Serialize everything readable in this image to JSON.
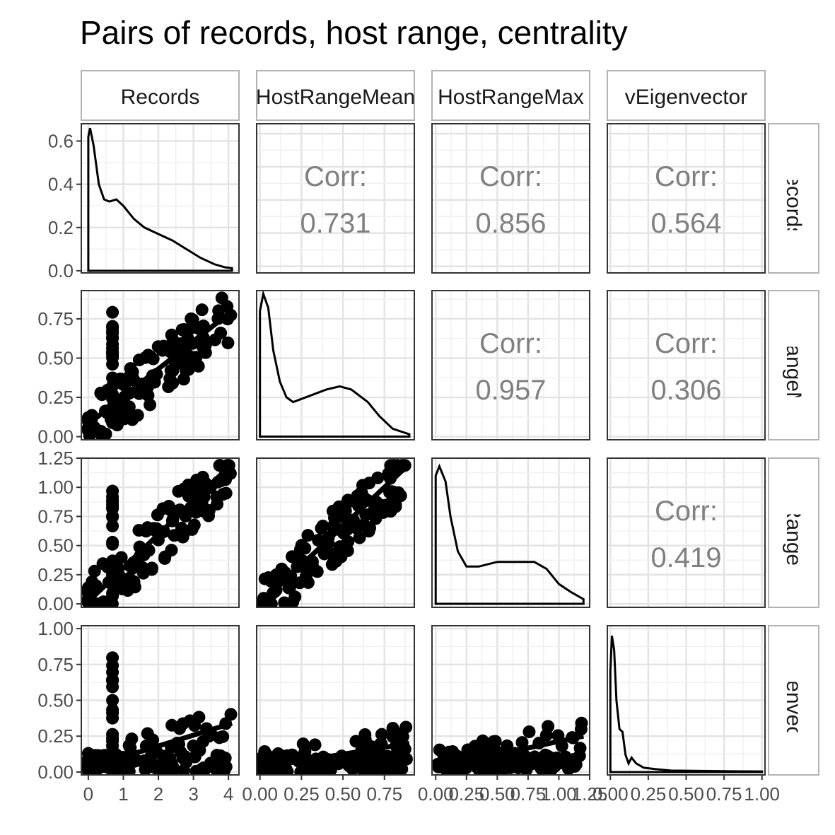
{
  "chart_data": {
    "type": "scatter",
    "title": "Pairs of records, host range, centrality",
    "variables": [
      {
        "name": "Records",
        "strip_label": "Records",
        "ticks": [
          0,
          1,
          2,
          3,
          4
        ],
        "tick_labels": [
          "0",
          "1",
          "2",
          "3",
          "4"
        ],
        "range": [
          -0.2,
          4.3
        ]
      },
      {
        "name": "HostRangeMean",
        "strip_label": "HostRangeMean",
        "ticks": [
          0,
          0.25,
          0.5,
          0.75
        ],
        "tick_labels": [
          "0.00",
          "0.25",
          "0.50",
          "0.75"
        ],
        "range": [
          -0.02,
          0.93
        ]
      },
      {
        "name": "HostRangeMax",
        "strip_label": "HostRangeMax",
        "ticks": [
          0,
          0.25,
          0.5,
          0.75,
          1,
          1.25
        ],
        "tick_labels": [
          "0.00",
          "0.25",
          "0.50",
          "0.75",
          "1.00",
          "1.25"
        ],
        "range": [
          -0.03,
          1.25
        ]
      },
      {
        "name": "vEigenvector",
        "strip_label": "vEigenvector",
        "ticks": [
          0,
          0.25,
          0.5,
          0.75,
          1
        ],
        "tick_labels": [
          "0.00",
          "0.25",
          "0.50",
          "0.75",
          "1.00"
        ],
        "range": [
          -0.02,
          1.02
        ]
      }
    ],
    "density_ticks": {
      "ticks": [
        0,
        0.2,
        0.4,
        0.6
      ],
      "tick_labels": [
        "0.0",
        "0.2",
        "0.4",
        "0.6"
      ],
      "range": [
        -0.01,
        0.68
      ]
    },
    "correlations": [
      {
        "row": 0,
        "col": 1,
        "label": "Corr:",
        "value": "0.731"
      },
      {
        "row": 0,
        "col": 2,
        "label": "Corr:",
        "value": "0.856"
      },
      {
        "row": 0,
        "col": 3,
        "label": "Corr:",
        "value": "0.564"
      },
      {
        "row": 1,
        "col": 2,
        "label": "Corr:",
        "value": "0.957"
      },
      {
        "row": 1,
        "col": 3,
        "label": "Corr:",
        "value": "0.306"
      },
      {
        "row": 2,
        "col": 3,
        "label": "Corr:",
        "value": "0.419"
      }
    ],
    "densities": [
      {
        "var": 0,
        "points": [
          [
            0,
            0.62
          ],
          [
            0.05,
            0.66
          ],
          [
            0.15,
            0.58
          ],
          [
            0.3,
            0.4
          ],
          [
            0.45,
            0.33
          ],
          [
            0.6,
            0.32
          ],
          [
            0.8,
            0.33
          ],
          [
            1.0,
            0.3
          ],
          [
            1.3,
            0.24
          ],
          [
            1.6,
            0.2
          ],
          [
            2.0,
            0.17
          ],
          [
            2.4,
            0.14
          ],
          [
            2.8,
            0.1
          ],
          [
            3.2,
            0.06
          ],
          [
            3.6,
            0.03
          ],
          [
            3.9,
            0.016
          ],
          [
            4.1,
            0.012
          ]
        ]
      },
      {
        "var": 1,
        "points": [
          [
            0,
            0.8
          ],
          [
            0.02,
            0.91
          ],
          [
            0.05,
            0.82
          ],
          [
            0.08,
            0.55
          ],
          [
            0.12,
            0.35
          ],
          [
            0.16,
            0.25
          ],
          [
            0.2,
            0.22
          ],
          [
            0.3,
            0.26
          ],
          [
            0.4,
            0.3
          ],
          [
            0.48,
            0.32
          ],
          [
            0.55,
            0.3
          ],
          [
            0.65,
            0.22
          ],
          [
            0.72,
            0.13
          ],
          [
            0.8,
            0.05
          ],
          [
            0.9,
            0.015
          ]
        ]
      },
      {
        "var": 2,
        "points": [
          [
            0,
            1.1
          ],
          [
            0.03,
            1.18
          ],
          [
            0.08,
            1.05
          ],
          [
            0.12,
            0.75
          ],
          [
            0.18,
            0.45
          ],
          [
            0.25,
            0.32
          ],
          [
            0.35,
            0.32
          ],
          [
            0.5,
            0.36
          ],
          [
            0.6,
            0.36
          ],
          [
            0.7,
            0.36
          ],
          [
            0.8,
            0.36
          ],
          [
            0.9,
            0.3
          ],
          [
            1.0,
            0.17
          ],
          [
            1.1,
            0.1
          ],
          [
            1.2,
            0.04
          ]
        ]
      },
      {
        "var": 3,
        "points": [
          [
            0,
            0.7
          ],
          [
            0.01,
            0.95
          ],
          [
            0.025,
            0.85
          ],
          [
            0.04,
            0.5
          ],
          [
            0.06,
            0.3
          ],
          [
            0.08,
            0.28
          ],
          [
            0.1,
            0.12
          ],
          [
            0.12,
            0.06
          ],
          [
            0.14,
            0.1
          ],
          [
            0.17,
            0.06
          ],
          [
            0.22,
            0.03
          ],
          [
            0.3,
            0.02
          ],
          [
            0.4,
            0.01
          ],
          [
            0.6,
            0.008
          ],
          [
            0.8,
            0.005
          ],
          [
            1.0,
            0.004
          ]
        ]
      }
    ],
    "fit_lines": [
      {
        "row": 1,
        "col": 0,
        "from": [
          0,
          0.08
        ],
        "to": [
          4.1,
          0.8
        ]
      },
      {
        "row": 2,
        "col": 0,
        "from": [
          0,
          0.02
        ],
        "to": [
          4.1,
          1.2
        ]
      },
      {
        "row": 2,
        "col": 1,
        "from": [
          0,
          0.0
        ],
        "to": [
          0.9,
          1.2
        ]
      },
      {
        "row": 3,
        "col": 0,
        "from": [
          0,
          0.03
        ],
        "to": [
          4.1,
          0.34
        ]
      },
      {
        "row": 3,
        "col": 1,
        "from": [
          0,
          0.03
        ],
        "to": [
          0.9,
          0.2
        ]
      },
      {
        "row": 3,
        "col": 2,
        "from": [
          0,
          0.03
        ],
        "to": [
          1.2,
          0.25
        ]
      }
    ]
  }
}
